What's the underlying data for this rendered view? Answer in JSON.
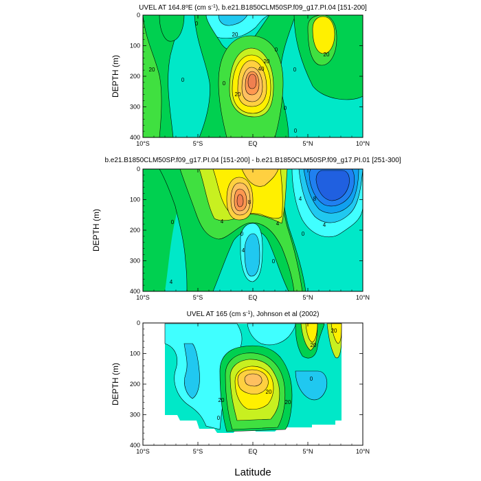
{
  "chart_data": [
    {
      "type": "contour",
      "title_main": "UVEL AT 164.8",
      "title_sup": "o",
      "title_rest": "E (cm s",
      "title_exp": "-1",
      "title_tail": "), b.e21.B1850CLM50SP.f09_g17.PI.04 [151-200]",
      "ylabel": "DEPTH (m)",
      "xlim": [
        -10,
        10
      ],
      "ylim": [
        0,
        400
      ],
      "xticks": [
        "10°S",
        "5°S",
        "EQ",
        "5°N",
        "10°N"
      ],
      "yticks": [
        "0",
        "100",
        "200",
        "300",
        "400"
      ],
      "contour_labels": [
        "0",
        "20",
        "0",
        "20",
        "40",
        "20",
        "0",
        "20",
        "0",
        "0",
        "0",
        "20",
        "0"
      ],
      "cores": [
        {
          "lat": -0.1,
          "depth": 180,
          "value": 60,
          "note": "equatorial undercurrent"
        },
        {
          "lat": 6.2,
          "depth": 70,
          "value": 25
        },
        {
          "lat": -7.2,
          "depth": 20,
          "value": 10
        },
        {
          "lat": 2.0,
          "depth": 20,
          "value": -25
        }
      ]
    },
    {
      "type": "contour",
      "title_main": "b.e21.B1850CLM50SP.f09_g17.PI.04 [151-200] - b.e21.B1850CLM50SP.f09_g17.PI.01 [251-300]",
      "ylabel": "DEPTH (m)",
      "xlim": [
        -10,
        10
      ],
      "ylim": [
        0,
        400
      ],
      "xticks": [
        "10°S",
        "5°S",
        "EQ",
        "5°N",
        "10°N"
      ],
      "yticks": [
        "0",
        "100",
        "200",
        "300",
        "400"
      ],
      "contour_labels": [
        "8",
        "4",
        "4",
        "0",
        "4",
        "4",
        "8",
        "0",
        "4",
        "0",
        "0",
        "4"
      ],
      "cores": [
        {
          "lat": -1.2,
          "depth": 110,
          "value": 10
        },
        {
          "lat": 0.8,
          "depth": 20,
          "value": 5
        },
        {
          "lat": 5.8,
          "depth": 90,
          "value": -11
        },
        {
          "lat": 0.0,
          "depth": 280,
          "value": -6
        }
      ]
    },
    {
      "type": "contour",
      "title_main": "UVEL AT 165 (cm s",
      "title_exp": "-1",
      "title_tail": "), Johnson et al (2002)",
      "ylabel": "DEPTH (m)",
      "xlabel": "Latitude",
      "xlim": [
        -10,
        10
      ],
      "ylim": [
        0,
        400
      ],
      "xticks": [
        "10°S",
        "5°S",
        "EQ",
        "5°N",
        "10°N"
      ],
      "yticks": [
        "0",
        "100",
        "200",
        "300",
        "400"
      ],
      "contour_labels": [
        "20",
        "20",
        "20",
        "0",
        "20",
        "20",
        "0"
      ],
      "cores": [
        {
          "lat": 0.0,
          "depth": 185,
          "value": 55
        },
        {
          "lat": 5.0,
          "depth": 40,
          "value": 25
        },
        {
          "lat": 7.5,
          "depth": 20,
          "value": 22
        },
        {
          "lat": 2.5,
          "depth": 60,
          "value": -20
        }
      ]
    }
  ]
}
